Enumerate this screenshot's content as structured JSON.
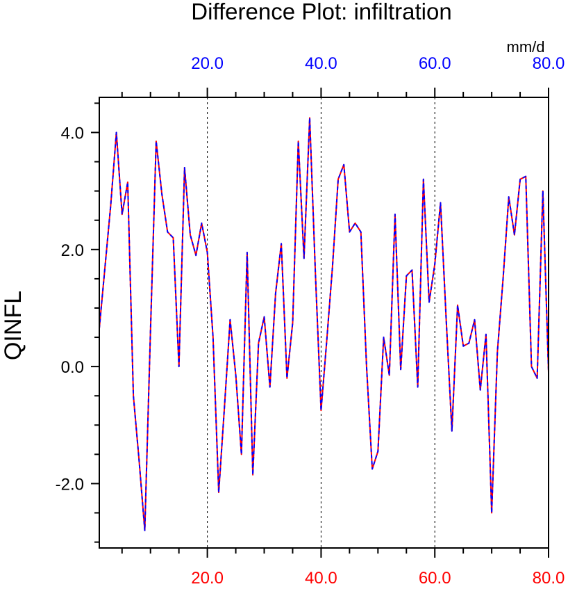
{
  "chart_data": {
    "type": "line",
    "title": "Difference Plot: infiltration",
    "ylabel": "QINFL",
    "units": "mm/d",
    "xlim": [
      1,
      80
    ],
    "ylim": [
      -3.1,
      4.6
    ],
    "x_ticks": [
      20,
      40,
      60,
      80
    ],
    "x_tick_labels": [
      "20.0",
      "40.0",
      "60.0",
      "80.0"
    ],
    "y_ticks": [
      -2,
      0,
      2,
      4
    ],
    "y_tick_labels": [
      "-2.0",
      "0.0",
      "2.0",
      "4.0"
    ],
    "grid": "dashed vertical lines at major x ticks",
    "colors": {
      "axis": "#000000",
      "top_tick_labels": "#0000ff",
      "bottom_tick_labels": "#ff0000",
      "series_a": "#ff0000",
      "series_b": "#0000ff",
      "grid": "#000000"
    },
    "series": [
      {
        "color": "#ff0000",
        "dash": "solid",
        "values": [
          0.65,
          1.7,
          2.75,
          4.0,
          2.6,
          3.15,
          -0.5,
          -1.6,
          -2.8,
          0.6,
          3.85,
          2.95,
          2.3,
          2.2,
          0.0,
          3.4,
          2.25,
          1.9,
          2.45,
          1.95,
          0.5,
          -2.15,
          -0.7,
          0.8,
          -0.15,
          -1.5,
          1.95,
          -1.85,
          0.4,
          0.85,
          -0.35,
          1.25,
          2.1,
          -0.2,
          0.75,
          3.85,
          1.85,
          4.25,
          1.6,
          -0.75,
          0.45,
          1.7,
          3.2,
          3.45,
          2.3,
          2.45,
          2.3,
          0.0,
          -1.75,
          -1.45,
          0.5,
          -0.15,
          2.6,
          -0.05,
          1.55,
          1.65,
          -0.35,
          3.2,
          1.1,
          1.75,
          2.8,
          0.8,
          -1.1,
          1.05,
          0.35,
          0.4,
          0.8,
          -0.4,
          0.55,
          -2.5,
          0.25,
          1.5,
          2.9,
          2.25,
          3.2,
          3.25,
          0.0,
          -0.2,
          3.0,
          -0.1
        ]
      },
      {
        "color": "#0000ff",
        "dash": "dashed",
        "values": [
          0.65,
          1.7,
          2.75,
          4.0,
          2.6,
          3.15,
          -0.5,
          -1.6,
          -2.8,
          0.6,
          3.85,
          2.95,
          2.3,
          2.2,
          0.0,
          3.4,
          2.25,
          1.9,
          2.45,
          1.95,
          0.5,
          -2.15,
          -0.7,
          0.8,
          -0.15,
          -1.5,
          1.95,
          -1.85,
          0.4,
          0.85,
          -0.35,
          1.25,
          2.1,
          -0.2,
          0.75,
          3.85,
          1.85,
          4.25,
          1.6,
          -0.75,
          0.45,
          1.7,
          3.2,
          3.45,
          2.3,
          2.45,
          2.3,
          0.0,
          -1.75,
          -1.45,
          0.5,
          -0.15,
          2.6,
          -0.05,
          1.55,
          1.65,
          -0.35,
          3.2,
          1.1,
          1.75,
          2.8,
          0.8,
          -1.1,
          1.05,
          0.35,
          0.4,
          0.8,
          -0.4,
          0.55,
          -2.5,
          0.25,
          1.5,
          2.9,
          2.25,
          3.2,
          3.25,
          0.0,
          -0.2,
          3.0,
          -0.1
        ]
      }
    ]
  }
}
